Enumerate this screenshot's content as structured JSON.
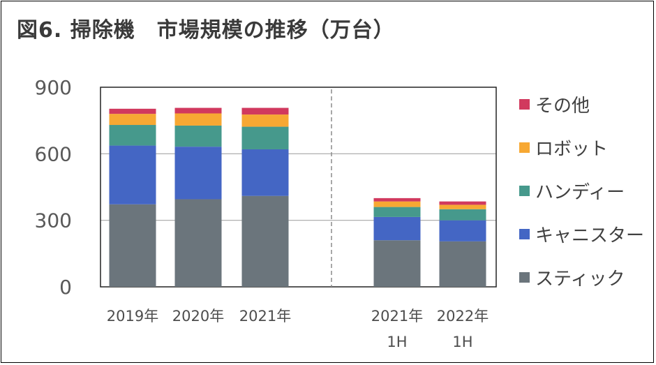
{
  "title": "図6. 掃除機　市場規模の推移（万台）",
  "chart_data": {
    "type": "bar",
    "stacked": true,
    "categories": [
      [
        "2019年"
      ],
      [
        "2020年"
      ],
      [
        "2021年"
      ],
      [
        "2021年",
        "1H"
      ],
      [
        "2022年",
        "1H"
      ]
    ],
    "ylim": [
      0,
      900
    ],
    "yticks": [
      "0",
      "300",
      "600",
      "900"
    ],
    "grid": true,
    "legend_position": "right",
    "series": [
      {
        "name": "スティック",
        "color": "#6b757c",
        "values": [
          372,
          395,
          410,
          210,
          205
        ]
      },
      {
        "name": "キャニスター",
        "color": "#4466c4",
        "values": [
          265,
          237,
          210,
          105,
          95
        ]
      },
      {
        "name": "ハンディー",
        "color": "#46998c",
        "values": [
          93,
          95,
          102,
          45,
          50
        ]
      },
      {
        "name": "ロボット",
        "color": "#f7a833",
        "values": [
          50,
          55,
          55,
          25,
          20
        ]
      },
      {
        "name": "その他",
        "color": "#d1395e",
        "values": [
          23,
          25,
          30,
          15,
          15
        ]
      }
    ]
  }
}
